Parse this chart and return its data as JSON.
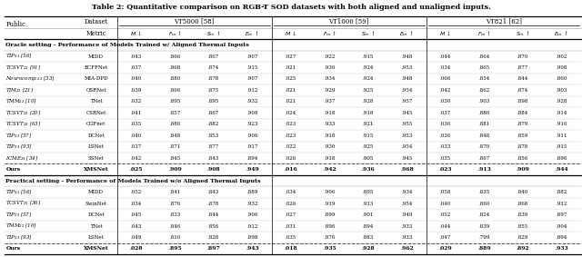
{
  "title": "Table 2: Quantitative comparison on RGB-T SOD datasets with both aligned and unaligned inputs.",
  "datasets": [
    "VT5000 [58]",
    "VT1000 [59]",
    "VT821 [62]"
  ],
  "section1_title": "Oracle setting - Performance of Models Trained w/ Aligned Thermal Inputs",
  "section1_rows": [
    [
      "TIP_{21} [56]",
      "MIDD",
      ".043",
      ".866",
      ".867",
      ".907",
      ".027",
      ".922",
      ".915",
      ".948",
      ".044",
      ".864",
      ".870",
      ".902"
    ],
    [
      "TCSVT_{21} [91]",
      "ECFFNet",
      ".037",
      ".868",
      ".874",
      ".915",
      ".021",
      ".930",
      ".924",
      ".953",
      ".034",
      ".865",
      ".877",
      ".908"
    ],
    [
      "Neurocomp._{22} [33]",
      "MIA-DPD",
      ".040",
      ".880",
      ".878",
      ".907",
      ".025",
      ".934",
      ".924",
      ".948",
      ".066",
      ".854",
      ".844",
      ".860"
    ],
    [
      "TIM_{22} [21]",
      "OSRNet",
      ".039",
      ".866",
      ".875",
      ".912",
      ".021",
      ".929",
      ".925",
      ".954",
      ".042",
      ".862",
      ".874",
      ".903"
    ],
    [
      "TMM_{22} [10]",
      "TNet",
      ".032",
      ".895",
      ".895",
      ".932",
      ".021",
      ".937",
      ".928",
      ".957",
      ".030",
      ".903",
      ".898",
      ".928"
    ],
    [
      "TCSVT_{22} [20]",
      "CSRNet",
      ".041",
      ".857",
      ".867",
      ".909",
      ".024",
      ".918",
      ".918",
      ".945",
      ".037",
      ".880",
      ".884",
      ".914"
    ],
    [
      "TCSVT_{22} [63]",
      "CGFnet",
      ".035",
      ".886",
      ".882",
      ".923",
      ".023",
      ".933",
      ".921",
      ".955",
      ".036",
      ".881",
      ".879",
      ".916"
    ],
    [
      "TIP_{22} [57]",
      "DCNet",
      ".040",
      ".848",
      ".853",
      ".906",
      ".023",
      ".918",
      ".915",
      ".953",
      ".036",
      ".848",
      ".859",
      ".911"
    ],
    [
      "TIP_{23} [93]",
      "LSNet",
      ".037",
      ".871",
      ".877",
      ".917",
      ".022",
      ".930",
      ".925",
      ".954",
      ".033",
      ".870",
      ".878",
      ".915"
    ],
    [
      "ICME_{23} [34]",
      "SSNet",
      ".042",
      ".845",
      ".843",
      ".894",
      ".026",
      ".918",
      ".905",
      ".945",
      ".035",
      ".867",
      ".856",
      ".896"
    ]
  ],
  "section1_ours": [
    "Ours",
    "XMSNet",
    ".025",
    ".909",
    ".908",
    ".949",
    ".016",
    ".942",
    ".936",
    ".968",
    ".023",
    ".913",
    ".909",
    ".944"
  ],
  "section2_title": "Practical setting - Performance of Models Trained w/o Aligned Thermal Inputs",
  "section2_rows": [
    [
      "TIP_{21} [56]",
      "MIDD",
      ".052",
      ".841",
      ".843",
      ".889",
      ".034",
      ".906",
      ".895",
      ".934",
      ".058",
      ".835",
      ".840",
      ".882"
    ],
    [
      "TCSVT_{21} [36]",
      "SwinNet",
      ".034",
      ".876",
      ".878",
      ".932",
      ".026",
      ".919",
      ".913",
      ".954",
      ".040",
      ".860",
      ".868",
      ".912"
    ],
    [
      "TIP_{22} [57]",
      "DCNet",
      ".045",
      ".833",
      ".844",
      ".906",
      ".027",
      ".899",
      ".901",
      ".949",
      ".052",
      ".824",
      ".839",
      ".897"
    ],
    [
      "TMM_{22} [10]",
      "TNet",
      ".043",
      ".846",
      ".856",
      ".912",
      ".031",
      ".896",
      ".894",
      ".933",
      ".044",
      ".839",
      ".855",
      ".904"
    ],
    [
      "TIP_{23} [93]",
      "LSNet",
      ".049",
      ".810",
      ".828",
      ".898",
      ".035",
      ".876",
      ".883",
      ".933",
      ".047",
      ".799",
      ".829",
      ".894"
    ]
  ],
  "section2_ours": [
    "Ours",
    "XMSNet",
    ".028",
    ".895",
    ".897",
    ".943",
    ".018",
    ".935",
    ".928",
    ".962",
    ".029",
    ".889",
    ".892",
    ".933"
  ]
}
